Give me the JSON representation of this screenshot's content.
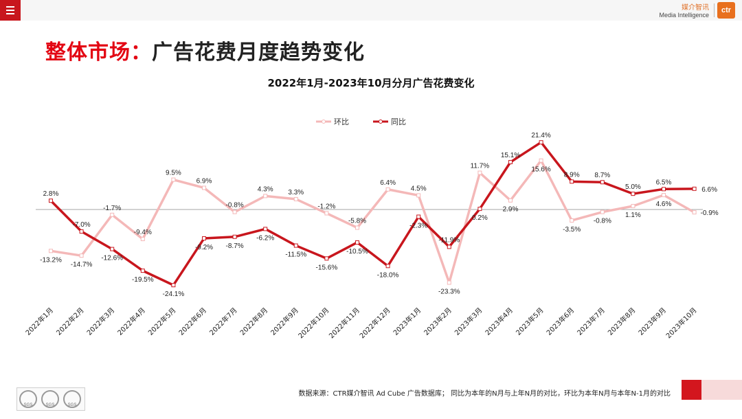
{
  "header": {
    "menu_icon": "hamburger-menu-icon",
    "brand_cn": "媒介智讯",
    "brand_en": "Media Intelligence",
    "logo_text": "ctr"
  },
  "page": {
    "title_red": "整体市场：",
    "title_black": "广告花费月度趋势变化"
  },
  "chart_data": {
    "type": "line",
    "title": "2022年1月-2023年10月分月广告花费变化",
    "categories": [
      "2022年1月",
      "2022年2月",
      "2022年3月",
      "2022年4月",
      "2022年5月",
      "2022年6月",
      "2022年7月",
      "2022年8月",
      "2022年9月",
      "2022年10月",
      "2022年11月",
      "2022年12月",
      "2023年1月",
      "2023年2月",
      "2023年3月",
      "2023年4月",
      "2023年5月",
      "2023年6月",
      "2023年7月",
      "2023年8月",
      "2023年9月",
      "2023年10月"
    ],
    "series": [
      {
        "name": "环比",
        "color": "#f4b8b8",
        "values": [
          -13.2,
          -14.7,
          -1.7,
          -9.4,
          9.5,
          6.9,
          -0.8,
          4.3,
          3.3,
          -1.2,
          -5.8,
          6.4,
          4.5,
          -23.3,
          11.7,
          2.9,
          15.6,
          -3.5,
          -0.8,
          1.1,
          4.6,
          -0.9
        ],
        "labels": [
          "-13.2%",
          "-14.7%",
          "-1.7%",
          "-9.4%",
          "9.5%",
          "6.9%",
          "-0.8%",
          "4.3%",
          "3.3%",
          "-1.2%",
          "-5.8%",
          "6.4%",
          "4.5%",
          "-23.3%",
          "11.7%",
          "2.9%",
          "15.6%",
          "-3.5%",
          "-0.8%",
          "1.1%",
          "4.6%",
          "-0.9%"
        ]
      },
      {
        "name": "同比",
        "color": "#c8161d",
        "values": [
          2.8,
          -7.0,
          -12.6,
          -19.5,
          -24.1,
          -9.2,
          -8.7,
          -6.2,
          -11.5,
          -15.6,
          -10.5,
          -18.0,
          -2.3,
          -11.9,
          0.2,
          15.1,
          21.4,
          8.9,
          8.7,
          5.0,
          6.5,
          6.6
        ],
        "labels": [
          "2.8%",
          "-7.0%",
          "-12.6%",
          "-19.5%",
          "-24.1%",
          "-9.2%",
          "-8.7%",
          "-6.2%",
          "-11.5%",
          "-15.6%",
          "-10.5%",
          "-18.0%",
          "-2.3%",
          "-11.9%",
          "0.2%",
          "15.1%",
          "21.4%",
          "8.9%",
          "8.7%",
          "5.0%",
          "6.5%",
          "6.6%"
        ]
      }
    ],
    "ylim": [
      -25,
      22
    ],
    "grid": false,
    "legend_position": "top-center"
  },
  "footer": {
    "source_text": "数据来源：CTR媒介智讯 Ad Cube 广告数据库； 同比为本年的N月与上年N月的对比，环比为本年N月与本年N-1月的对比",
    "cert_badge_label": "SGS"
  }
}
